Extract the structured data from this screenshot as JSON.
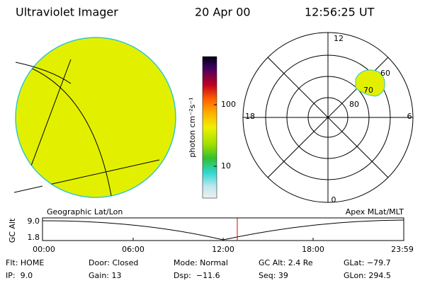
{
  "header": {
    "instrument": "Ultraviolet Imager",
    "date": "20 Apr 00",
    "time": "12:56:25 UT"
  },
  "colorbar": {
    "label": "photon cm⁻²s⁻¹",
    "ticks": [
      "100",
      "10"
    ]
  },
  "polar": {
    "mlt_labels": [
      "12",
      "18",
      "6",
      "0"
    ],
    "mlat_labels": [
      "60",
      "70",
      "80"
    ]
  },
  "altitude_plot": {
    "left_title": "Geographic Lat/Lon",
    "right_title": "Apex MLat/MLT",
    "y_label": "GC Alt",
    "y_ticks": [
      "9.0",
      "1.8"
    ],
    "x_ticks": [
      "00:00",
      "06:00",
      "12:00",
      "18:00",
      "23:59"
    ]
  },
  "footer": {
    "rows": [
      [
        "Flt: HOME",
        "Door: Closed",
        "Mode: Normal",
        "GC Alt: 2.4 Re",
        "GLat: −79.7"
      ],
      [
        "IP:  9.0",
        "Gain: 13",
        "Dsp:  −11.6",
        "Seq: 39",
        "GLon: 294.5"
      ]
    ]
  }
}
